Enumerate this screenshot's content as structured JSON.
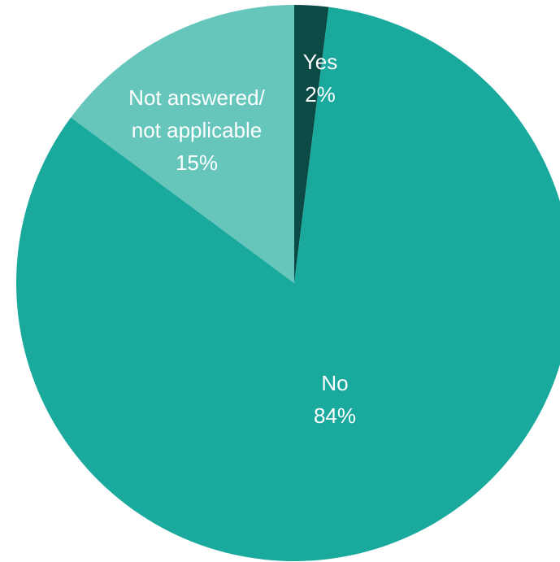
{
  "chart_data": {
    "type": "pie",
    "title": "",
    "slices": [
      {
        "label": "Yes",
        "label_lines": [
          "Yes",
          "2%"
        ],
        "value": 2,
        "color": "#0b4a45"
      },
      {
        "label": "No",
        "label_lines": [
          "No",
          "84%"
        ],
        "value": 84,
        "color": "#1aa99d"
      },
      {
        "label": "Not answered/ not applicable",
        "label_lines": [
          "Not answered/",
          "not applicable",
          "15%"
        ],
        "value": 15,
        "color": "#67c6bc"
      }
    ]
  }
}
